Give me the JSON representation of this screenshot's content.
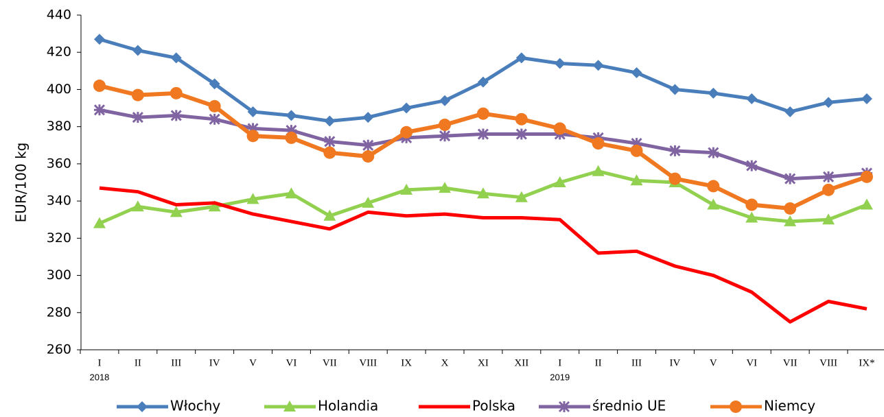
{
  "chart_data": {
    "type": "line",
    "y_label": "EUR/100 kg",
    "categories": [
      "I",
      "II",
      "III",
      "IV",
      "V",
      "VI",
      "VII",
      "VIII",
      "IX",
      "X",
      "XI",
      "XII",
      "I",
      "II",
      "III",
      "IV",
      "V",
      "VI",
      "VII",
      "VIII",
      "IX*"
    ],
    "category_groups": [
      "2018",
      null,
      null,
      null,
      null,
      null,
      null,
      null,
      null,
      null,
      null,
      null,
      "2019",
      null,
      null,
      null,
      null,
      null,
      null,
      null,
      null
    ],
    "ylim": [
      260,
      440
    ],
    "yticks": [
      260,
      280,
      300,
      320,
      340,
      360,
      380,
      400,
      420,
      440
    ],
    "grid": false,
    "legend": "bottom",
    "series": [
      {
        "name": "Włochy",
        "color": "#4a7ebb",
        "marker": "diamond",
        "values": [
          427,
          421,
          417,
          403,
          388,
          386,
          383,
          385,
          390,
          394,
          404,
          417,
          414,
          413,
          409,
          400,
          398,
          395,
          388,
          393,
          395
        ]
      },
      {
        "name": "Holandia",
        "color": "#92d050",
        "marker": "triangle",
        "values": [
          328,
          337,
          334,
          337,
          341,
          344,
          332,
          339,
          346,
          347,
          344,
          342,
          350,
          356,
          351,
          350,
          338,
          331,
          329,
          330,
          338
        ]
      },
      {
        "name": "Polska",
        "color": "#ff0000",
        "marker": "none",
        "values": [
          347,
          345,
          338,
          339,
          333,
          329,
          325,
          334,
          332,
          333,
          331,
          331,
          330,
          312,
          313,
          305,
          300,
          291,
          275,
          286,
          282
        ]
      },
      {
        "name": "średnio UE",
        "color": "#8064a2",
        "marker": "star",
        "values": [
          389,
          385,
          386,
          384,
          379,
          378,
          372,
          370,
          374,
          375,
          376,
          376,
          376,
          374,
          371,
          367,
          366,
          359,
          352,
          353,
          355
        ]
      },
      {
        "name": "Niemcy",
        "color": "#f07820",
        "marker": "circle",
        "values": [
          402,
          397,
          398,
          391,
          375,
          374,
          366,
          364,
          377,
          381,
          387,
          384,
          379,
          371,
          367,
          352,
          348,
          338,
          336,
          346,
          353
        ]
      }
    ]
  }
}
